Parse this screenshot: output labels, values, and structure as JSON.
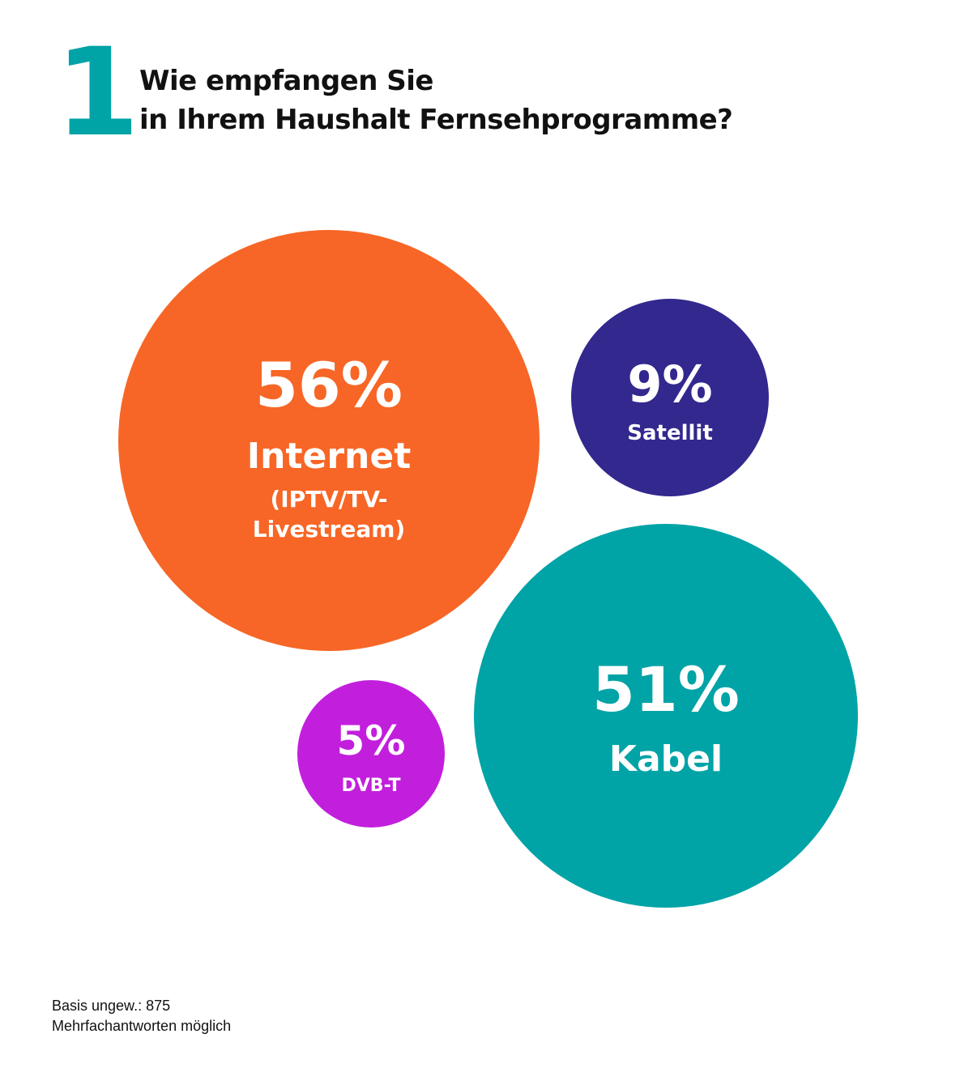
{
  "header": {
    "number": "1",
    "title_line1": "Wie empfangen Sie",
    "title_line2": "in Ihrem Haushalt Fernsehprogramme?"
  },
  "chart_data": {
    "type": "bubble",
    "items": [
      {
        "value": "56%",
        "label": "Internet",
        "sublabel_line1": "(IPTV/TV-",
        "sublabel_line2": "Livestream)",
        "color": "#f76626"
      },
      {
        "value": "9%",
        "label": "Satellit",
        "color": "#32288e"
      },
      {
        "value": "51%",
        "label": "Kabel",
        "color": "#00a3a6"
      },
      {
        "value": "5%",
        "label": "DVB-T",
        "color": "#c21fdd"
      }
    ]
  },
  "footer": {
    "line1": "Basis ungew.: 875",
    "line2": "Mehrfachantworten möglich"
  }
}
